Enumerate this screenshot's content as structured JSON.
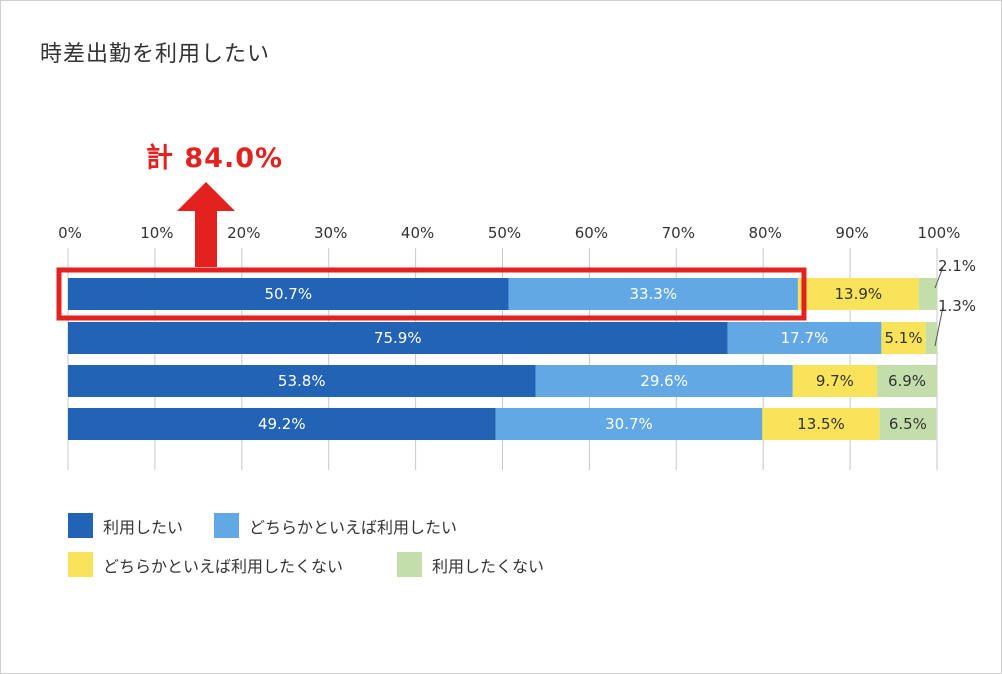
{
  "chart_data": {
    "type": "bar",
    "orientation": "horizontal-stacked-100",
    "title": "時差出勤を利用したい",
    "callout": "計 84.0%",
    "axis_ticks": [
      "0%",
      "10%",
      "20%",
      "30%",
      "40%",
      "50%",
      "60%",
      "70%",
      "80%",
      "90%",
      "100%"
    ],
    "xlim": [
      0,
      100
    ],
    "series": [
      {
        "name": "利用したい",
        "color": "#2363b6",
        "label_color": "#ffffff",
        "values": [
          50.7,
          75.9,
          53.8,
          49.2
        ]
      },
      {
        "name": "どちらかといえば利用したい",
        "color": "#62a8e4",
        "label_color": "#ffffff",
        "values": [
          33.3,
          17.7,
          29.6,
          30.7
        ]
      },
      {
        "name": "どちらかといえば利用したくない",
        "color": "#f8e35a",
        "label_color": "#333333",
        "values": [
          13.9,
          5.1,
          9.7,
          13.5
        ]
      },
      {
        "name": "利用したくない",
        "color": "#c3deaa",
        "label_color": "#333333",
        "values": [
          2.1,
          1.3,
          6.9,
          6.5
        ]
      }
    ],
    "labels": [
      [
        "50.7%",
        "33.3%",
        "13.9%",
        "2.1%"
      ],
      [
        "75.9%",
        "17.7%",
        "5.1%",
        "1.3%"
      ],
      [
        "53.8%",
        "29.6%",
        "9.7%",
        "6.9%"
      ],
      [
        "49.2%",
        "30.7%",
        "13.5%",
        "6.5%"
      ]
    ],
    "outside_labels": [
      true,
      true,
      false,
      false
    ],
    "highlight": {
      "row": 0,
      "color": "#e3211e"
    }
  }
}
